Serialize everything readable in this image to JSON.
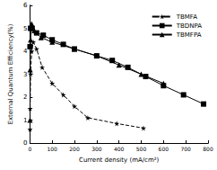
{
  "chart_data": {
    "type": "line",
    "x_label": "Current density (mA/cm²)",
    "y_label": "External Quantum Efficiency(%)",
    "xlim": [
      0,
      800
    ],
    "xticks": [
      0,
      100,
      200,
      300,
      400,
      500,
      600,
      700,
      800
    ],
    "ylim": [
      0,
      6
    ],
    "yticks": [
      0,
      1,
      2,
      3,
      4,
      5,
      6
    ],
    "grid": false,
    "legend": "top-right",
    "series": [
      {
        "name": "TBMFA",
        "color": "#000000",
        "marker": "star",
        "line_style": "dashed",
        "x": [
          0.5,
          1,
          3,
          8,
          15,
          30,
          55,
          100,
          150,
          200,
          260,
          390,
          510
        ],
        "values": [
          0.6,
          1.5,
          3.0,
          4.0,
          4.4,
          4.1,
          3.3,
          2.6,
          2.1,
          1.6,
          1.1,
          0.85,
          0.65
        ]
      },
      {
        "name": "TBDNPA",
        "color": "#000000",
        "marker": "square",
        "line_style": "solid",
        "x": [
          0.5,
          3,
          10,
          30,
          60,
          100,
          150,
          200,
          300,
          370,
          440,
          520,
          600,
          690,
          780
        ],
        "values": [
          4.2,
          5.0,
          5.0,
          4.8,
          4.7,
          4.5,
          4.3,
          4.1,
          3.8,
          3.6,
          3.3,
          2.9,
          2.5,
          2.1,
          1.7
        ]
      },
      {
        "name": "TBMFPA",
        "color": "#000000",
        "marker": "triangle",
        "line_style": "solid",
        "x": [
          0.5,
          1,
          3,
          8,
          20,
          50,
          100,
          200,
          300,
          400,
          500,
          600
        ],
        "values": [
          1.0,
          3.2,
          4.5,
          5.2,
          4.9,
          4.6,
          4.4,
          4.1,
          3.8,
          3.4,
          3.0,
          2.6
        ]
      }
    ]
  }
}
